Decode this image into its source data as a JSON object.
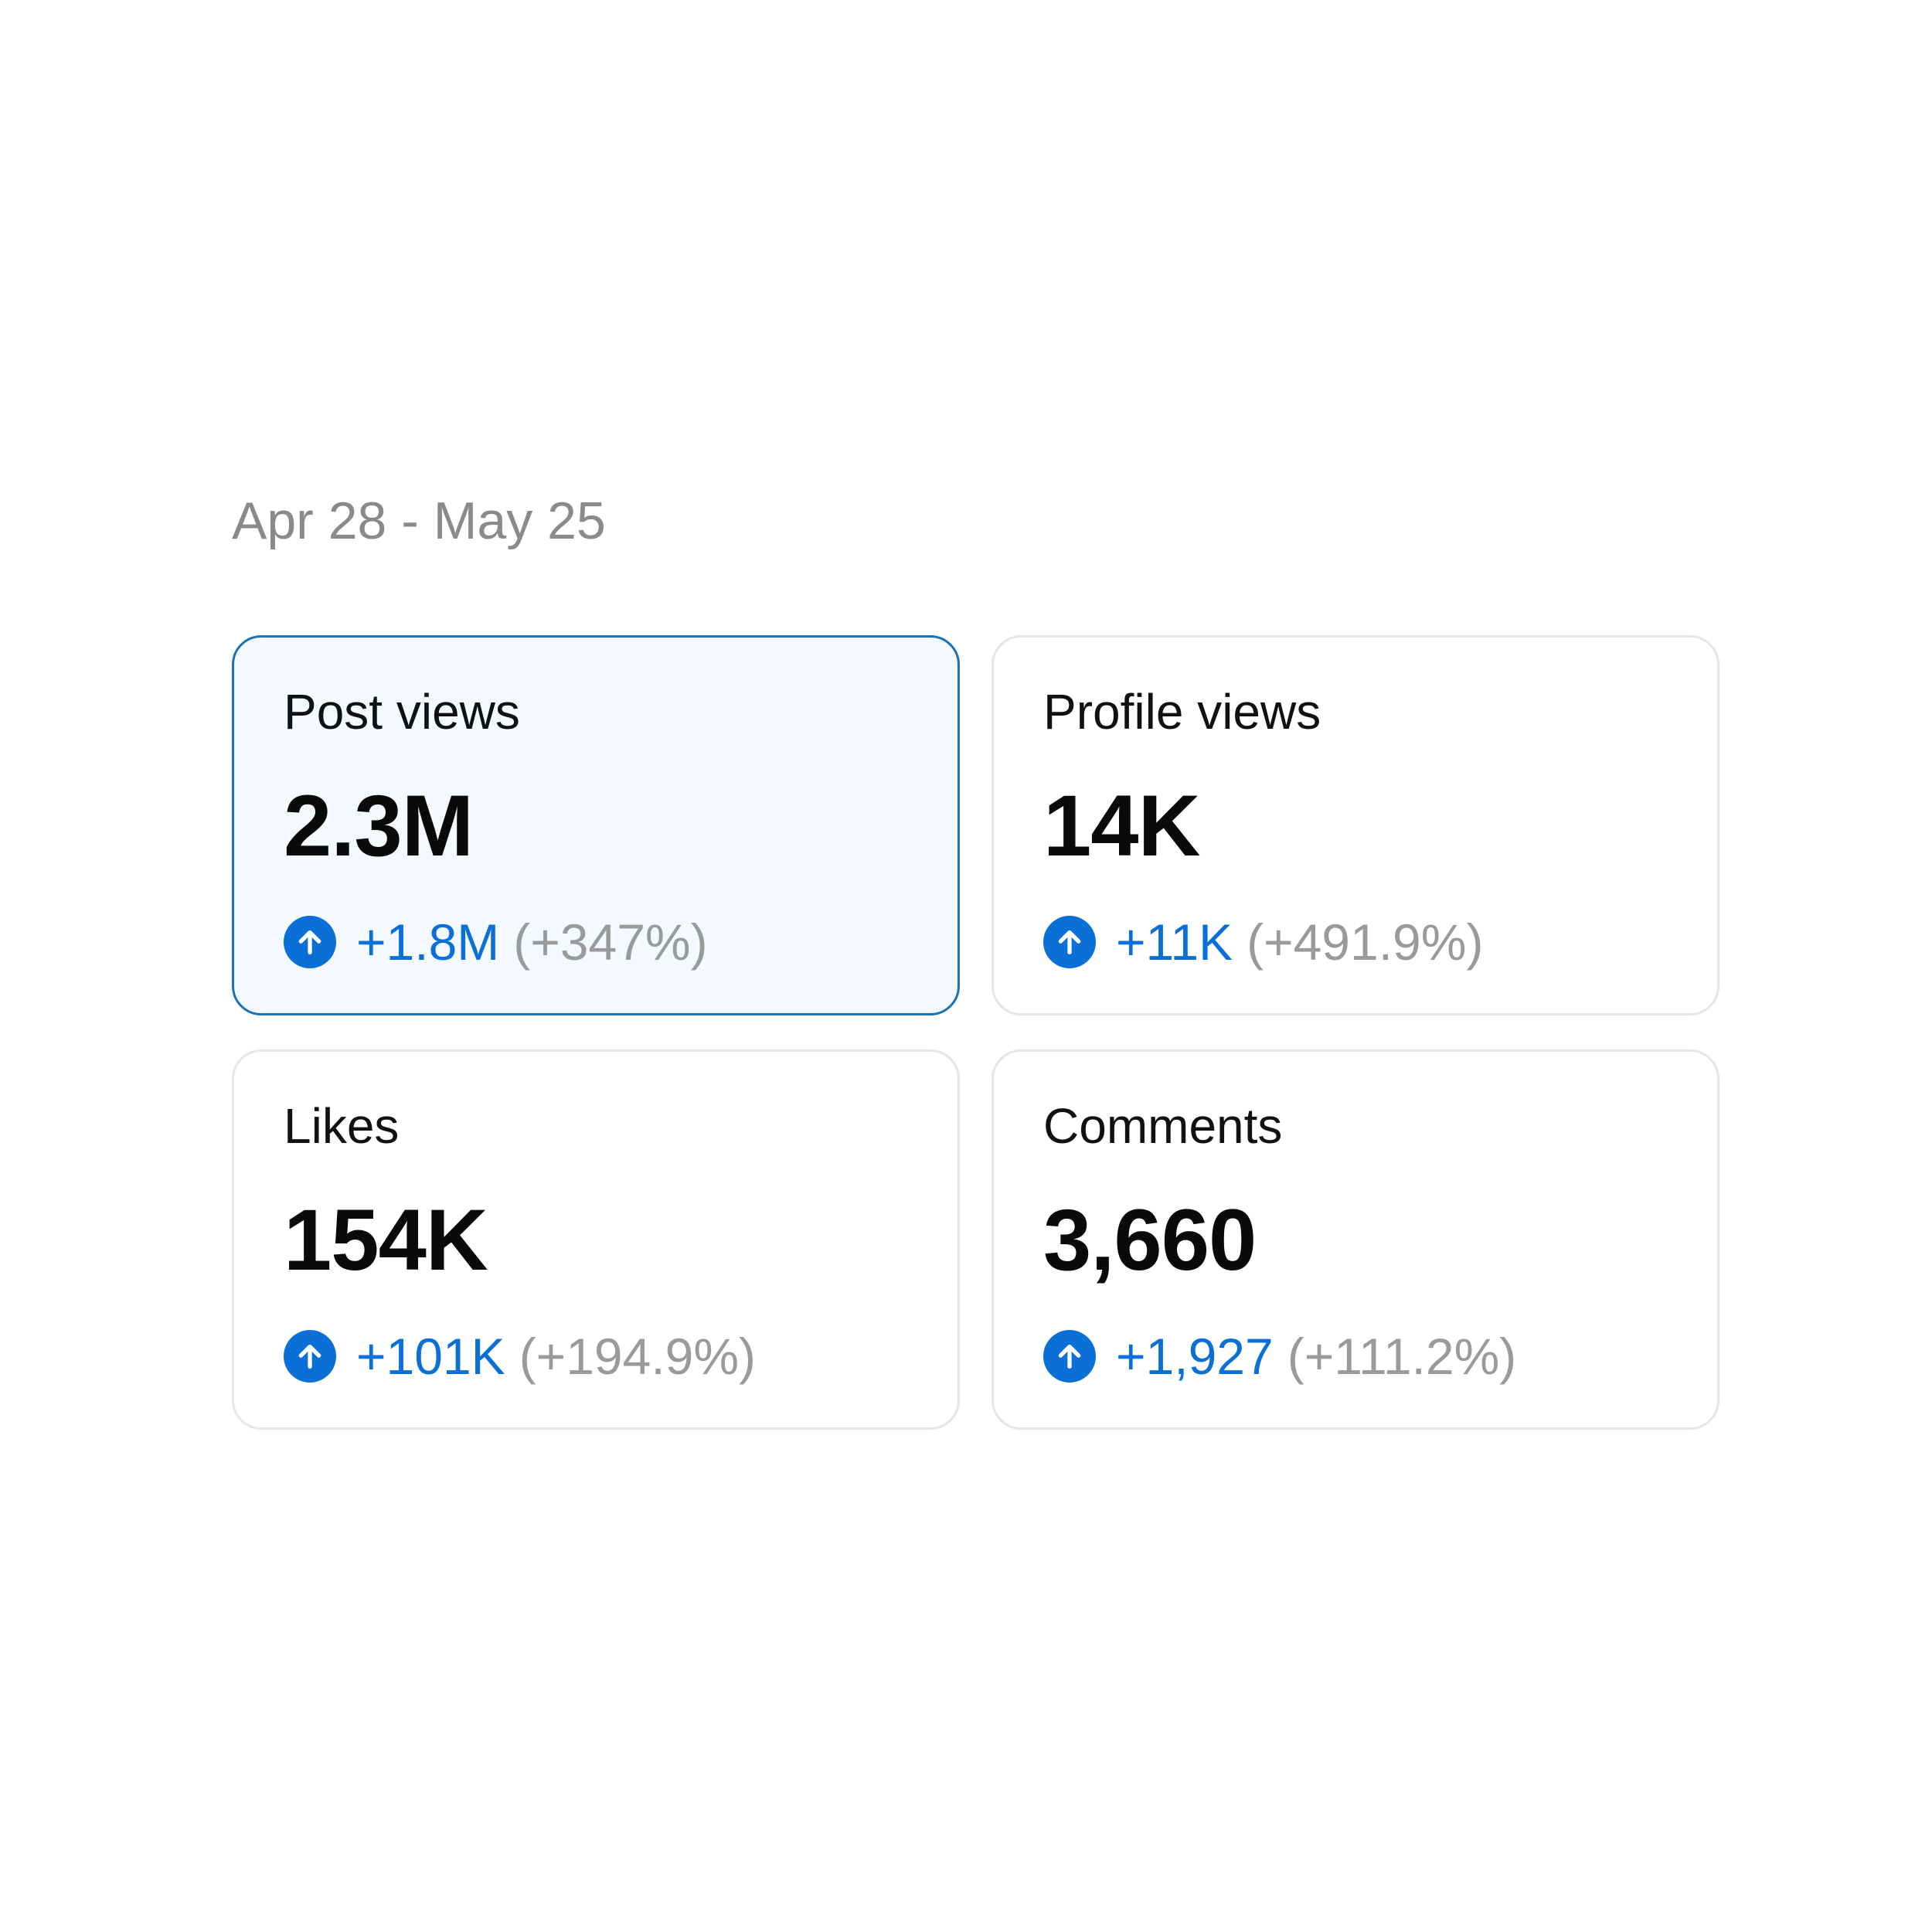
{
  "date_range": "Apr 28 - May 25",
  "accent_color": "#0a6fd6",
  "cards": [
    {
      "title": "Post views",
      "value": "2.3M",
      "change": "+1.8M",
      "change_pct": "(+347%)",
      "selected": true,
      "trend_icon": "arrow-up-circle-icon"
    },
    {
      "title": "Profile views",
      "value": "14K",
      "change": "+11K",
      "change_pct": "(+491.9%)",
      "selected": false,
      "trend_icon": "arrow-up-circle-icon"
    },
    {
      "title": "Likes",
      "value": "154K",
      "change": "+101K",
      "change_pct": "(+194.9%)",
      "selected": false,
      "trend_icon": "arrow-up-circle-icon"
    },
    {
      "title": "Comments",
      "value": "3,660",
      "change": "+1,927",
      "change_pct": "(+111.2%)",
      "selected": false,
      "trend_icon": "arrow-up-circle-icon"
    }
  ]
}
